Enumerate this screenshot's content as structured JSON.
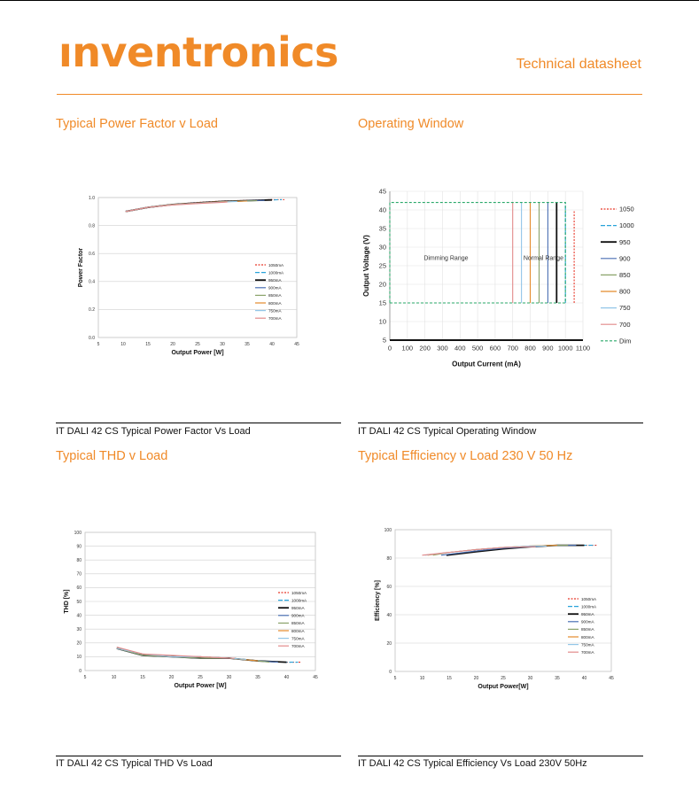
{
  "header": {
    "logo_text": "ınventronics",
    "doc_type": "Technical datasheet"
  },
  "colors": {
    "accent": "#f08a28",
    "series": {
      "1050": "#e8392b",
      "1000": "#29a3d9",
      "950": "#111111",
      "900": "#4a6fb4",
      "850": "#8aa36a",
      "800": "#e48a2c",
      "750": "#92c6e8",
      "700": "#e28a8a",
      "dim": "#2aa86a"
    }
  },
  "sections": [
    {
      "title": "Typical Power Factor v Load",
      "caption": "IT DALI 42 CS Typical Power Factor Vs Load"
    },
    {
      "title": "Operating Window",
      "caption": "IT DALI 42 CS Typical Operating Window"
    },
    {
      "title": "Typical THD v Load",
      "caption": "IT DALI 42 CS Typical THD Vs Load"
    },
    {
      "title": "Typical Efficiency v Load 230 V 50 Hz",
      "caption": "IT DALI 42 CS Typical Efficiency Vs Load 230V 50Hz"
    }
  ],
  "chart_data": [
    {
      "type": "line",
      "xlabel": "Output Power [W]",
      "ylabel": "Power Factor",
      "xlim": [
        5,
        45
      ],
      "ylim": [
        0.0,
        1.0
      ],
      "x_ticks": [
        "5",
        "10",
        "15",
        "20",
        "25",
        "30",
        "35",
        "40",
        "45"
      ],
      "y_ticks": [
        "0.0",
        "0.2",
        "0.4",
        "0.6",
        "0.8",
        "1.0"
      ],
      "legend_position": "right",
      "series": [
        {
          "name": "1050mA",
          "key": "1050",
          "x": [
            10.5,
            15,
            20,
            25,
            30,
            35,
            40,
            42.5
          ],
          "y": [
            0.9,
            0.93,
            0.95,
            0.965,
            0.975,
            0.98,
            0.985,
            0.985
          ]
        },
        {
          "name": "1000mA",
          "key": "1000",
          "x": [
            10.5,
            15,
            20,
            25,
            30,
            35,
            40,
            42
          ],
          "y": [
            0.9,
            0.93,
            0.95,
            0.962,
            0.972,
            0.978,
            0.983,
            0.985
          ]
        },
        {
          "name": "950mA",
          "key": "950",
          "x": [
            10.5,
            15,
            20,
            25,
            30,
            35,
            40
          ],
          "y": [
            0.9,
            0.93,
            0.95,
            0.962,
            0.972,
            0.978,
            0.983
          ]
        },
        {
          "name": "900mA",
          "key": "900",
          "x": [
            10.5,
            15,
            20,
            25,
            30,
            35,
            38.5
          ],
          "y": [
            0.9,
            0.93,
            0.95,
            0.962,
            0.97,
            0.977,
            0.98
          ]
        },
        {
          "name": "850mA",
          "key": "850",
          "x": [
            10.5,
            15,
            20,
            25,
            30,
            35,
            37
          ],
          "y": [
            0.9,
            0.93,
            0.95,
            0.96,
            0.97,
            0.976,
            0.978
          ]
        },
        {
          "name": "800mA",
          "key": "800",
          "x": [
            10.5,
            15,
            20,
            25,
            30,
            35
          ],
          "y": [
            0.9,
            0.93,
            0.95,
            0.96,
            0.97,
            0.975
          ]
        },
        {
          "name": "750mA",
          "key": "750",
          "x": [
            10.5,
            15,
            20,
            25,
            30,
            33
          ],
          "y": [
            0.9,
            0.93,
            0.948,
            0.958,
            0.968,
            0.972
          ]
        },
        {
          "name": "700mA",
          "key": "700",
          "x": [
            10.5,
            15,
            20,
            25,
            30,
            31
          ],
          "y": [
            0.9,
            0.93,
            0.947,
            0.957,
            0.966,
            0.968
          ]
        }
      ]
    },
    {
      "type": "line",
      "xlabel": "Output Current  (mA)",
      "ylabel": "Output Voltage  (V)",
      "xlim": [
        0,
        1100
      ],
      "ylim": [
        5,
        45
      ],
      "x_ticks": [
        "0",
        "100",
        "200",
        "300",
        "400",
        "500",
        "600",
        "700",
        "800",
        "900",
        "1000",
        "1100"
      ],
      "y_ticks": [
        "5",
        "10",
        "15",
        "20",
        "25",
        "30",
        "35",
        "40",
        "45"
      ],
      "legend_position": "right",
      "annotations": [
        "Dimming Range",
        "Normal Range"
      ],
      "series": [
        {
          "name": "1050",
          "key": "1050",
          "x": [
            1050,
            1050
          ],
          "y": [
            15,
            40
          ]
        },
        {
          "name": "1000",
          "key": "1000",
          "x": [
            1000,
            1000
          ],
          "y": [
            15,
            42
          ]
        },
        {
          "name": "950",
          "key": "950",
          "x": [
            950,
            950
          ],
          "y": [
            15,
            42
          ]
        },
        {
          "name": "900",
          "key": "900",
          "x": [
            900,
            900
          ],
          "y": [
            15,
            42
          ]
        },
        {
          "name": "850",
          "key": "850",
          "x": [
            850,
            850
          ],
          "y": [
            15,
            42
          ]
        },
        {
          "name": "800",
          "key": "800",
          "x": [
            800,
            800
          ],
          "y": [
            15,
            42
          ]
        },
        {
          "name": "750",
          "key": "750",
          "x": [
            750,
            750
          ],
          "y": [
            15,
            42
          ]
        },
        {
          "name": "700",
          "key": "700",
          "x": [
            700,
            700
          ],
          "y": [
            15,
            42
          ]
        },
        {
          "name": "Dim",
          "key": "dim",
          "x": [
            0,
            1000,
            1000,
            0,
            0
          ],
          "y": [
            15,
            15,
            42,
            42,
            15
          ]
        }
      ]
    },
    {
      "type": "line",
      "xlabel": "Output Power [W]",
      "ylabel": "THD [%]",
      "xlim": [
        5,
        45
      ],
      "ylim": [
        0,
        100
      ],
      "x_ticks": [
        "5",
        "10",
        "15",
        "20",
        "25",
        "30",
        "35",
        "40",
        "45"
      ],
      "y_ticks": [
        "0",
        "10",
        "20",
        "30",
        "40",
        "50",
        "60",
        "70",
        "80",
        "90",
        "100"
      ],
      "legend_position": "right",
      "series": [
        {
          "name": "1050mA",
          "key": "1050",
          "x": [
            10.5,
            15,
            20,
            25,
            30,
            35,
            40,
            42.5
          ],
          "y": [
            16,
            11,
            10,
            10,
            9,
            7,
            6,
            6
          ]
        },
        {
          "name": "1000mA",
          "key": "1000",
          "x": [
            10.5,
            15,
            20,
            25,
            30,
            35,
            40,
            42
          ],
          "y": [
            16,
            11,
            10,
            10,
            9,
            7,
            6,
            6
          ]
        },
        {
          "name": "950mA",
          "key": "950",
          "x": [
            10.5,
            15,
            20,
            25,
            30,
            35,
            40
          ],
          "y": [
            16,
            11,
            10,
            9,
            9,
            7,
            6
          ]
        },
        {
          "name": "900mA",
          "key": "900",
          "x": [
            10.5,
            15,
            20,
            25,
            30,
            35,
            38.5
          ],
          "y": [
            16,
            11,
            10,
            9,
            9,
            7,
            6
          ]
        },
        {
          "name": "850mA",
          "key": "850",
          "x": [
            10.5,
            15,
            20,
            25,
            30,
            35,
            37
          ],
          "y": [
            16,
            11,
            10,
            9,
            9,
            7,
            6
          ]
        },
        {
          "name": "800mA",
          "key": "800",
          "x": [
            10.5,
            15,
            20,
            25,
            30,
            35
          ],
          "y": [
            16,
            12,
            10,
            10,
            9,
            7
          ]
        },
        {
          "name": "750mA",
          "key": "750",
          "x": [
            10.5,
            15,
            20,
            25,
            30,
            33
          ],
          "y": [
            16,
            12,
            10,
            10,
            9,
            8
          ]
        },
        {
          "name": "700mA",
          "key": "700",
          "x": [
            10.5,
            15,
            20,
            25,
            30,
            31
          ],
          "y": [
            17,
            12,
            11,
            10,
            9,
            9
          ]
        }
      ]
    },
    {
      "type": "line",
      "xlabel": "Output Power[W]",
      "ylabel": "Efficiency [%]",
      "xlim": [
        5,
        45
      ],
      "ylim": [
        0,
        100
      ],
      "x_ticks": [
        "5",
        "10",
        "15",
        "20",
        "25",
        "30",
        "35",
        "40",
        "45"
      ],
      "y_ticks": [
        "0",
        "20",
        "40",
        "60",
        "80",
        "100"
      ],
      "legend_position": "right",
      "series": [
        {
          "name": "1050mA",
          "key": "1050",
          "x": [
            14.5,
            20,
            25,
            30,
            35,
            40,
            42.5
          ],
          "y": [
            82,
            85,
            87,
            88,
            89,
            89,
            89
          ]
        },
        {
          "name": "1000mA",
          "key": "1000",
          "x": [
            14.5,
            20,
            25,
            30,
            35,
            40,
            42
          ],
          "y": [
            82,
            85,
            87,
            88,
            89,
            89,
            89
          ]
        },
        {
          "name": "950mA",
          "key": "950",
          "x": [
            14.5,
            20,
            25,
            30,
            35,
            40
          ],
          "y": [
            82,
            84.5,
            86.5,
            88,
            89,
            89
          ]
        },
        {
          "name": "900mA",
          "key": "900",
          "x": [
            13.5,
            20,
            25,
            30,
            35,
            38.5
          ],
          "y": [
            82,
            85,
            87,
            88,
            89,
            89
          ]
        },
        {
          "name": "850mA",
          "key": "850",
          "x": [
            12,
            15,
            20,
            25,
            30,
            35,
            37
          ],
          "y": [
            82,
            84,
            86,
            87.5,
            88.5,
            89,
            89
          ]
        },
        {
          "name": "800mA",
          "key": "800",
          "x": [
            11,
            15,
            20,
            25,
            30,
            35
          ],
          "y": [
            82,
            84,
            86,
            87.5,
            88.5,
            89
          ]
        },
        {
          "name": "750mA",
          "key": "750",
          "x": [
            10.5,
            15,
            20,
            25,
            30,
            33
          ],
          "y": [
            82,
            84,
            86,
            87.5,
            88.5,
            88.5
          ]
        },
        {
          "name": "700mA",
          "key": "700",
          "x": [
            10,
            15,
            20,
            25,
            30,
            31
          ],
          "y": [
            82,
            84,
            86,
            87.5,
            88,
            88
          ]
        }
      ]
    }
  ]
}
